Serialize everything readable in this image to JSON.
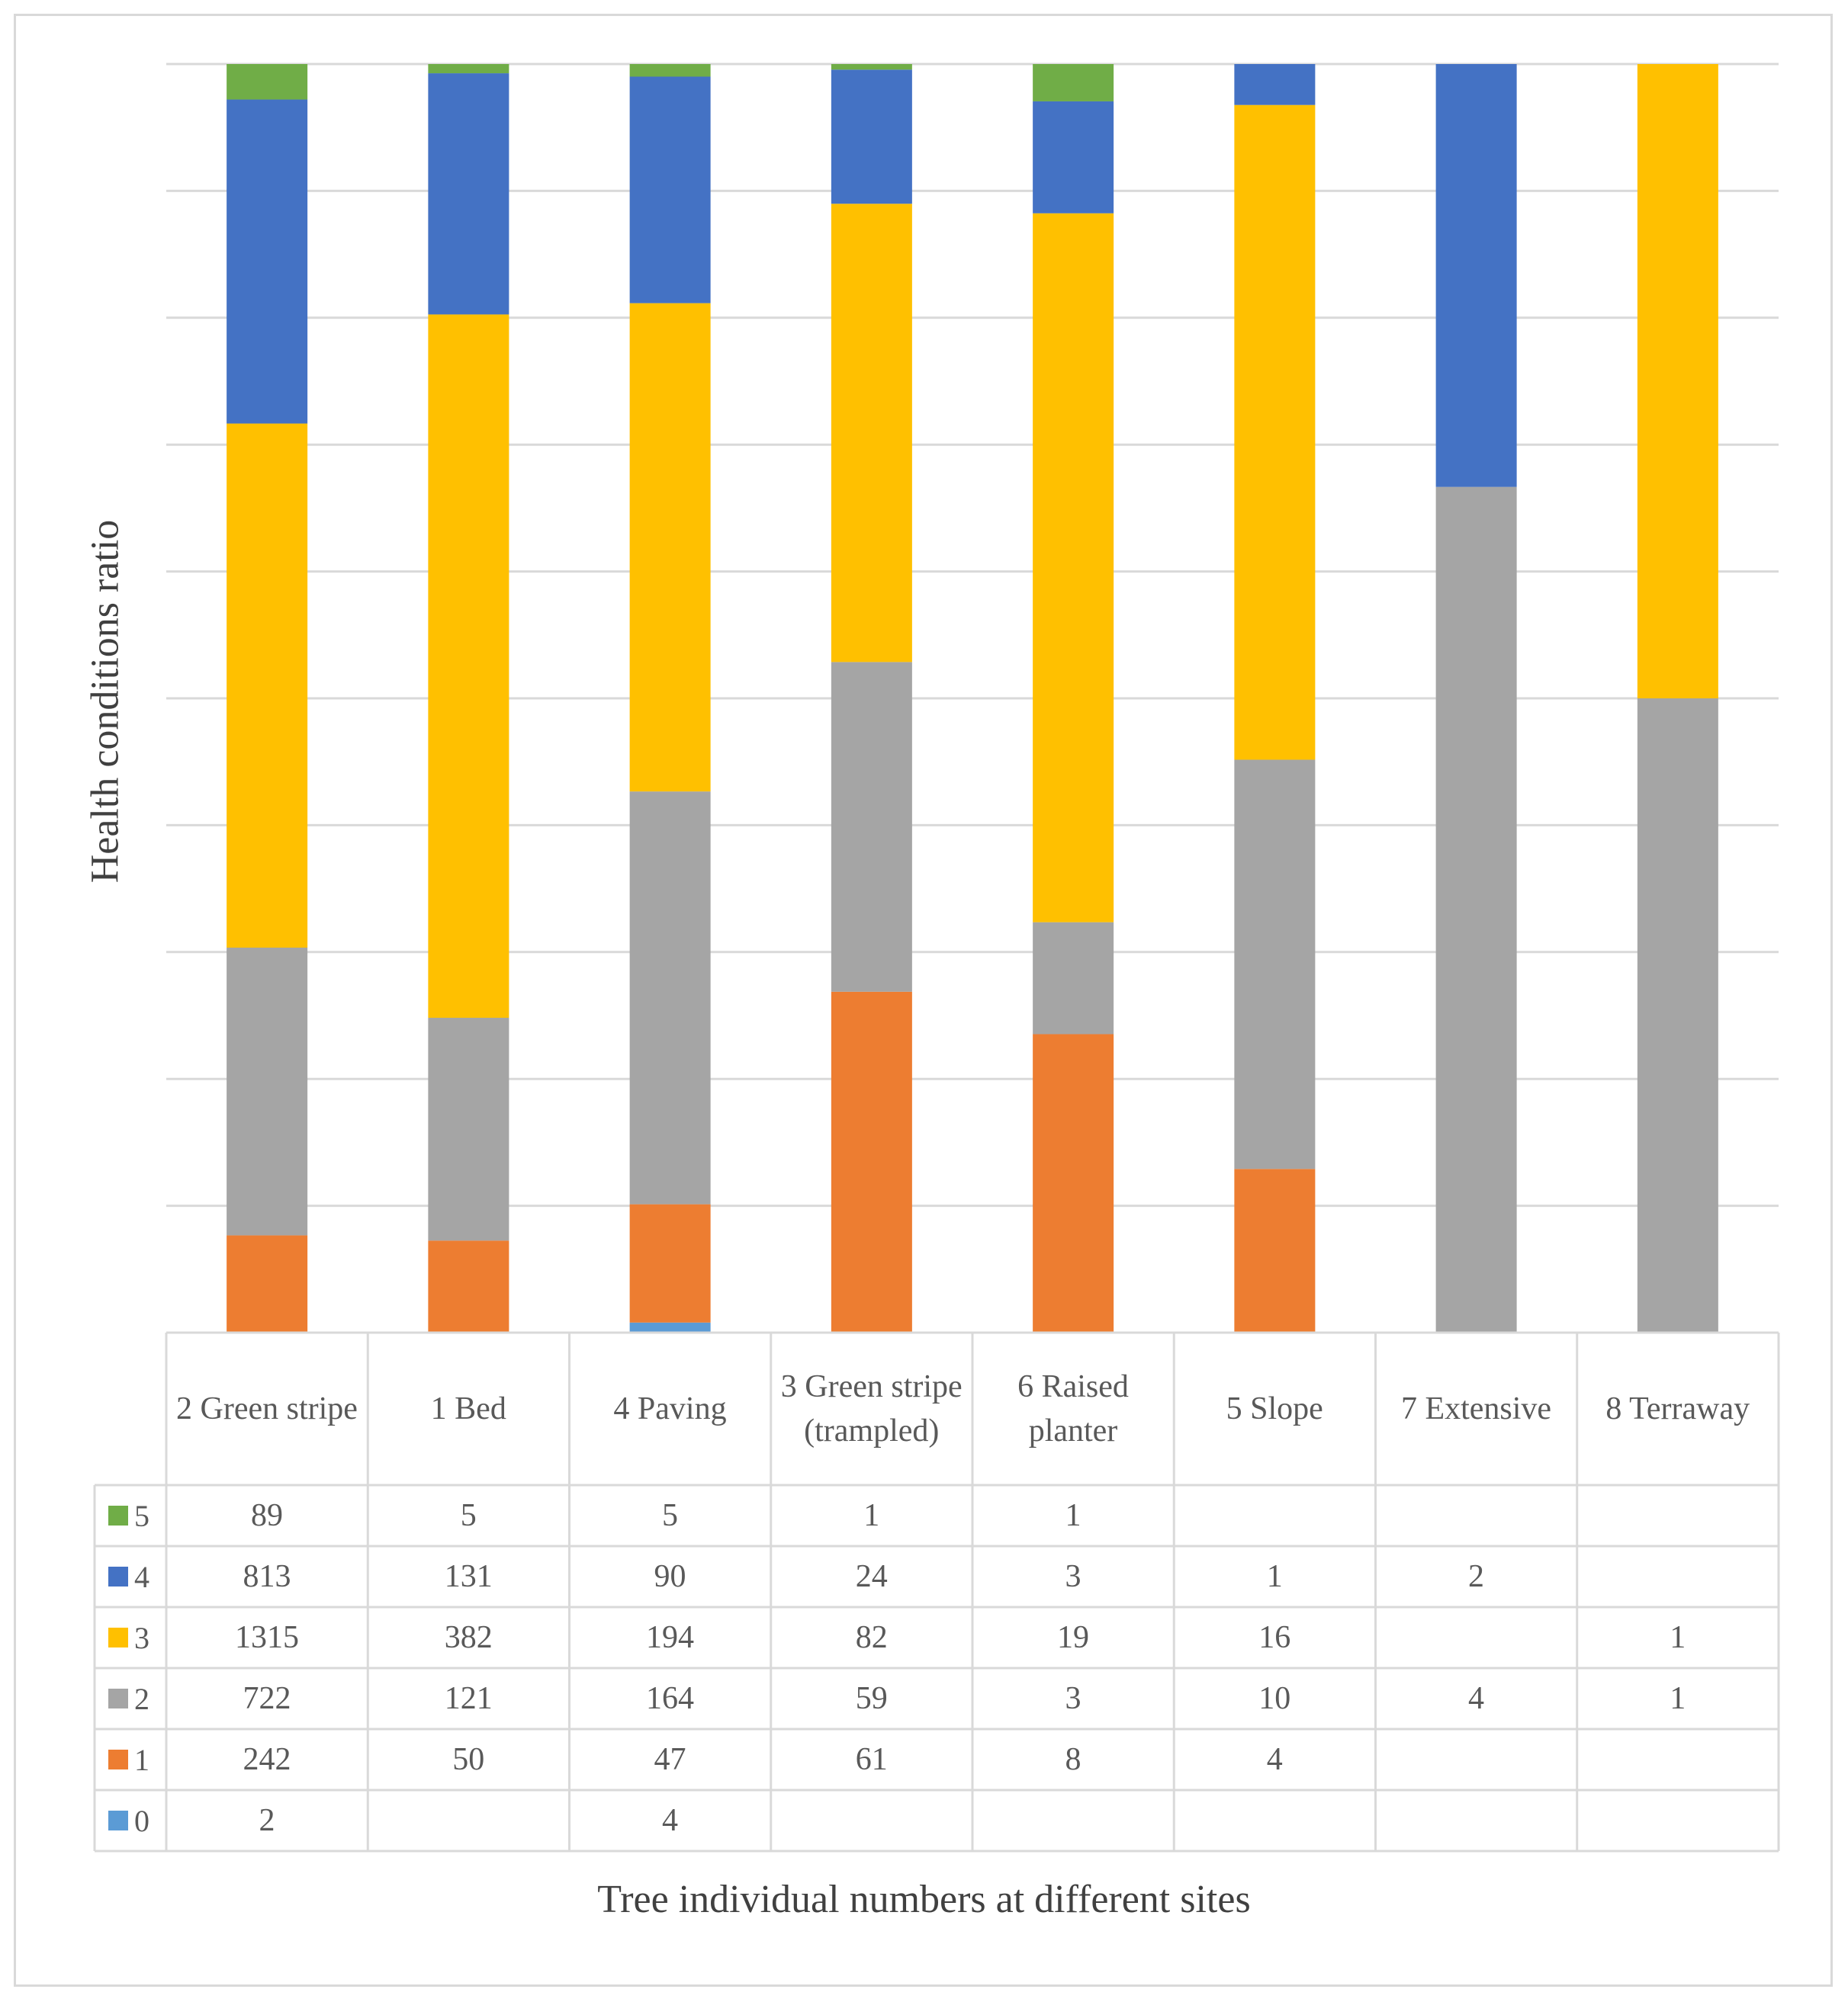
{
  "chart_data": {
    "type": "bar",
    "stacked": "percent",
    "title": "",
    "ylabel": "Health conditions ratio",
    "xlabel": "Tree individual numbers at different sites",
    "ylim": [
      0,
      1
    ],
    "grid": true,
    "categories": [
      "2 Green stripe",
      "1 Bed",
      "4 Paving",
      "3 Green stripe (trampled)",
      "6 Raised planter",
      "5 Slope",
      "7 Extensive",
      "8 Terraway"
    ],
    "series": [
      {
        "name": "0",
        "color": "#5b9bd5",
        "values": [
          2,
          null,
          4,
          null,
          null,
          null,
          null,
          null
        ]
      },
      {
        "name": "1",
        "color": "#ed7d31",
        "values": [
          242,
          50,
          47,
          61,
          8,
          4,
          null,
          null
        ]
      },
      {
        "name": "2",
        "color": "#a5a5a5",
        "values": [
          722,
          121,
          164,
          59,
          3,
          10,
          4,
          1
        ]
      },
      {
        "name": "3",
        "color": "#ffc000",
        "values": [
          1315,
          382,
          194,
          82,
          19,
          16,
          null,
          1
        ]
      },
      {
        "name": "4",
        "color": "#4472c4",
        "values": [
          813,
          131,
          90,
          24,
          3,
          1,
          2,
          null
        ]
      },
      {
        "name": "5",
        "color": "#70ad47",
        "values": [
          89,
          5,
          5,
          1,
          1,
          null,
          null,
          null
        ]
      }
    ],
    "table_row_order": [
      "5",
      "4",
      "3",
      "2",
      "1",
      "0"
    ]
  }
}
